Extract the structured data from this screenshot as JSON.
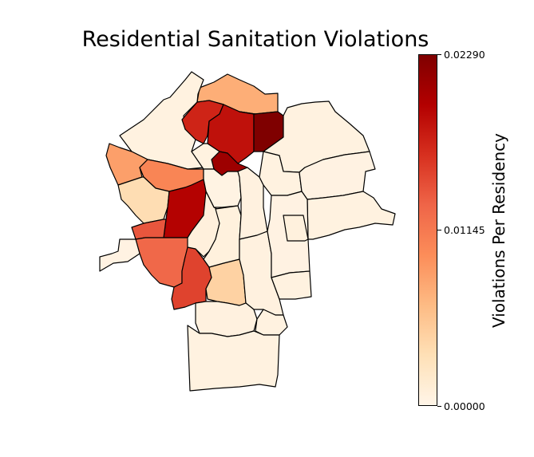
{
  "chart_data": {
    "type": "choropleth",
    "title": "Residential Sanitation Violations",
    "colorbar": {
      "label": "Violations Per Residency",
      "min": 0.0,
      "max": 0.0229,
      "ticks": [
        "0.00000",
        "0.01145",
        "0.02290"
      ],
      "colormap": [
        "#fff5e8",
        "#fee0b6",
        "#fdbb84",
        "#fc8d59",
        "#ef6548",
        "#d7301f",
        "#b30000",
        "#7f0000"
      ]
    },
    "regions": [
      {
        "name": "north-strip",
        "value": 0.0075
      },
      {
        "name": "northwest",
        "value": 0.0005
      },
      {
        "name": "north-center-left",
        "value": 0.0172
      },
      {
        "name": "north-center",
        "value": 0.0185
      },
      {
        "name": "north-darkest",
        "value": 0.0229
      },
      {
        "name": "northeast",
        "value": 0.0005
      },
      {
        "name": "center-small-dark",
        "value": 0.021
      },
      {
        "name": "west-orange-left",
        "value": 0.0085
      },
      {
        "name": "west-orange-mid",
        "value": 0.0105
      },
      {
        "name": "center-white-north",
        "value": 0.0005
      },
      {
        "name": "center-white",
        "value": 0.0003
      },
      {
        "name": "west-light",
        "value": 0.0035
      },
      {
        "name": "central-red",
        "value": 0.0195
      },
      {
        "name": "west-red-orange",
        "value": 0.014
      },
      {
        "name": "southwest-orange",
        "value": 0.0128
      },
      {
        "name": "south-red",
        "value": 0.0152
      },
      {
        "name": "south-light-orange",
        "value": 0.0045
      },
      {
        "name": "central-pale-a",
        "value": 0.0008
      },
      {
        "name": "central-pale-b",
        "value": 0.0007
      },
      {
        "name": "central-pale-c",
        "value": 0.0006
      },
      {
        "name": "central-pale-d",
        "value": 0.0006
      },
      {
        "name": "east-pale-a",
        "value": 0.0005
      },
      {
        "name": "east-pale-b",
        "value": 0.0004
      },
      {
        "name": "east-pale-c",
        "value": 0.0005
      },
      {
        "name": "east-pale-d",
        "value": 0.0004
      },
      {
        "name": "east-pale-e",
        "value": 0.0005
      },
      {
        "name": "south-pale-a",
        "value": 0.0006
      },
      {
        "name": "south-pale-b",
        "value": 0.0005
      },
      {
        "name": "south-pale-c",
        "value": 0.0007
      },
      {
        "name": "far-west-strip",
        "value": 0.0004
      },
      {
        "name": "southern-large",
        "value": 0.0005
      },
      {
        "name": "center-east-white",
        "value": 0.0005
      }
    ]
  }
}
